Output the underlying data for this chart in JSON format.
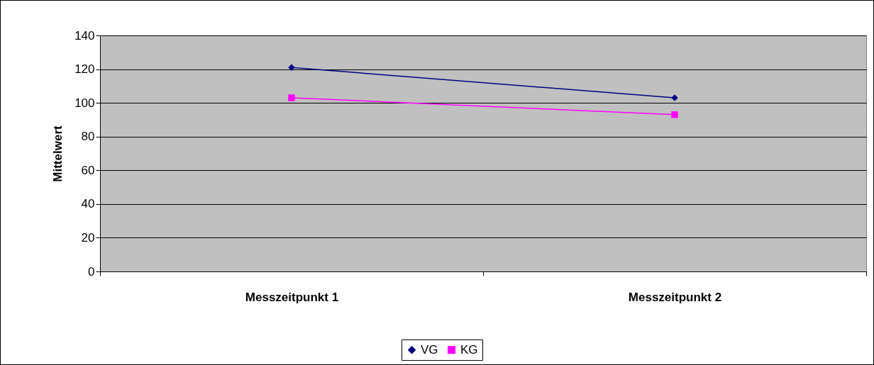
{
  "chart_data": {
    "type": "line",
    "ylabel": "Mittelwert",
    "categories": [
      "Messzeitpunkt 1",
      "Messzeitpunkt 2"
    ],
    "series": [
      {
        "name": "VG",
        "color": "#000080",
        "values": [
          121,
          103
        ],
        "marker": "diamond"
      },
      {
        "name": "KG",
        "color": "#ff00ff",
        "values": [
          103,
          93
        ],
        "marker": "square"
      }
    ],
    "ylim": [
      0,
      140
    ],
    "yticks": [
      0,
      20,
      40,
      60,
      80,
      100,
      120,
      140
    ],
    "grid": "y",
    "legend": "bottom"
  }
}
